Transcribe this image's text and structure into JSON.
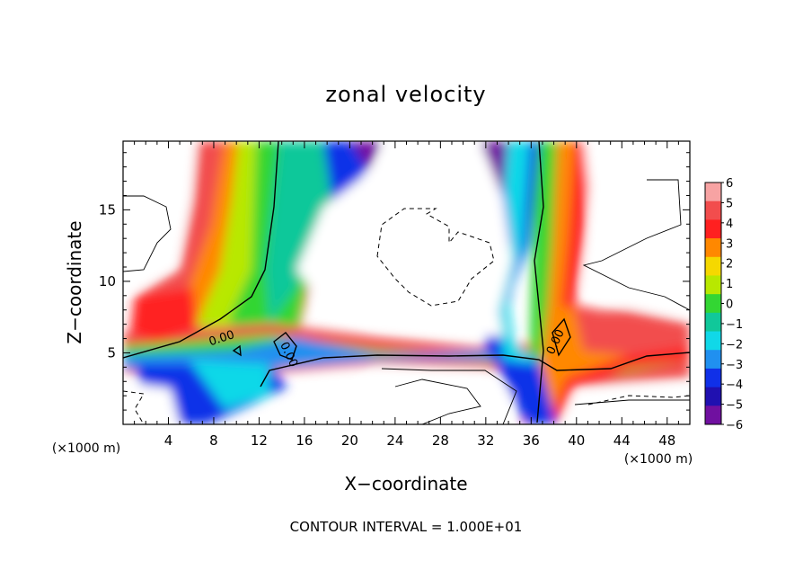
{
  "chart_data": {
    "type": "heatmap",
    "title": "zonal velocity",
    "xlabel": "X−coordinate",
    "ylabel": "Z−coordinate",
    "x_unit_left": "(×1000 m)",
    "x_unit_right": "(×1000 m)",
    "footer": "CONTOUR INTERVAL = 1.000E+01",
    "contour_label": "0.00",
    "xlim": [
      0,
      50
    ],
    "ylim": [
      0,
      19.8
    ],
    "x_ticks": [
      "4",
      "8",
      "12",
      "16",
      "20",
      "24",
      "28",
      "32",
      "36",
      "40",
      "44",
      "48"
    ],
    "y_ticks": [
      "5",
      "10",
      "15"
    ],
    "colorbar": {
      "levels": [
        "6",
        "5",
        "4",
        "3",
        "2",
        "1",
        "0",
        "−1",
        "−2",
        "−3",
        "−4",
        "−5",
        "−6"
      ],
      "colors": [
        "#f7a3a3",
        "#f24d4d",
        "#ff2020",
        "#ff8800",
        "#f5d800",
        "#b8e800",
        "#33d633",
        "#10c89a",
        "#10d8e8",
        "#2090f0",
        "#1030e8",
        "#2010b0",
        "#7010a0"
      ]
    }
  }
}
